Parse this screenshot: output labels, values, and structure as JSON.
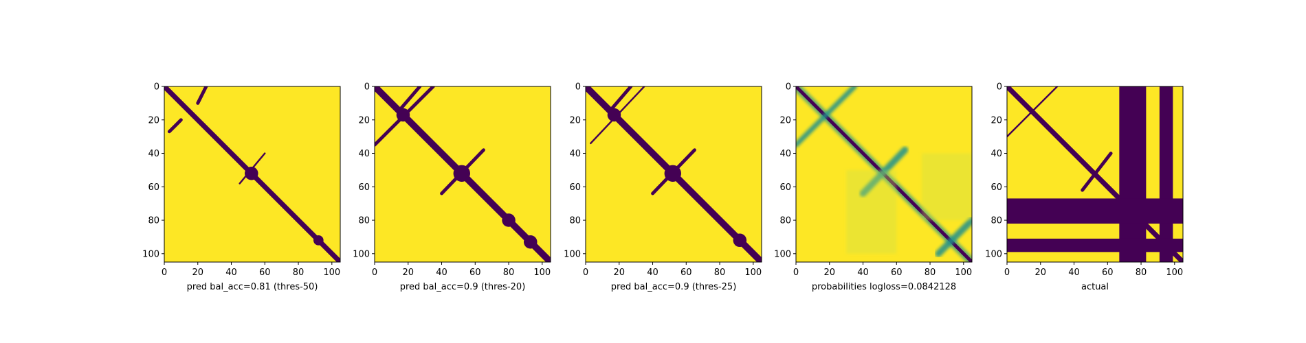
{
  "chart_data": [
    {
      "type": "heatmap",
      "panel": 1,
      "xlabel": "pred bal_acc=0.81 (thres-50)",
      "x_ticks": [
        0,
        20,
        40,
        60,
        80,
        100
      ],
      "y_ticks": [
        0,
        20,
        40,
        60,
        80,
        100
      ],
      "xlim": [
        0,
        105
      ],
      "ylim": [
        105,
        0
      ],
      "colors": {
        "low": "#440154",
        "high": "#fde725"
      },
      "values_binary": true,
      "features": [
        {
          "kind": "diagonal",
          "offset": 0,
          "width": 3
        },
        {
          "kind": "band_segment",
          "x0": 25,
          "y0": 0,
          "x1": 20,
          "y1": 10,
          "width": 2
        },
        {
          "kind": "band_segment",
          "x0": 10,
          "y0": 20,
          "x1": 3,
          "y1": 27,
          "width": 2
        },
        {
          "kind": "blob",
          "cx": 52,
          "cy": 52,
          "r": 4
        },
        {
          "kind": "band_segment",
          "x0": 60,
          "y0": 40,
          "x1": 45,
          "y1": 58,
          "width": 1
        },
        {
          "kind": "blob",
          "cx": 92,
          "cy": 92,
          "r": 3
        }
      ]
    },
    {
      "type": "heatmap",
      "panel": 2,
      "xlabel": "pred bal_acc=0.9 (thres-20)",
      "x_ticks": [
        0,
        20,
        40,
        60,
        80,
        100
      ],
      "y_ticks": [
        0,
        20,
        40,
        60,
        80,
        100
      ],
      "xlim": [
        0,
        105
      ],
      "ylim": [
        105,
        0
      ],
      "colors": {
        "low": "#440154",
        "high": "#fde725"
      },
      "values_binary": true,
      "features": [
        {
          "kind": "diagonal",
          "offset": 0,
          "width": 4
        },
        {
          "kind": "band_segment",
          "x0": 35,
          "y0": 0,
          "x1": 0,
          "y1": 35,
          "width": 2
        },
        {
          "kind": "band_segment",
          "x0": 27,
          "y0": 0,
          "x1": 15,
          "y1": 14,
          "width": 2
        },
        {
          "kind": "blob",
          "cx": 17,
          "cy": 17,
          "r": 4
        },
        {
          "kind": "blob",
          "cx": 52,
          "cy": 52,
          "r": 5
        },
        {
          "kind": "band_segment",
          "x0": 65,
          "y0": 38,
          "x1": 40,
          "y1": 64,
          "width": 2
        },
        {
          "kind": "blob",
          "cx": 80,
          "cy": 80,
          "r": 4
        },
        {
          "kind": "blob",
          "cx": 93,
          "cy": 93,
          "r": 4
        }
      ]
    },
    {
      "type": "heatmap",
      "panel": 3,
      "xlabel": "pred bal_acc=0.9 (thres-25)",
      "x_ticks": [
        0,
        20,
        40,
        60,
        80,
        100
      ],
      "y_ticks": [
        0,
        20,
        40,
        60,
        80,
        100
      ],
      "xlim": [
        0,
        105
      ],
      "ylim": [
        105,
        0
      ],
      "colors": {
        "low": "#440154",
        "high": "#fde725"
      },
      "values_binary": true,
      "features": [
        {
          "kind": "diagonal",
          "offset": 0,
          "width": 4
        },
        {
          "kind": "band_segment",
          "x0": 35,
          "y0": 0,
          "x1": 3,
          "y1": 34,
          "width": 1
        },
        {
          "kind": "band_segment",
          "x0": 27,
          "y0": 0,
          "x1": 15,
          "y1": 14,
          "width": 2
        },
        {
          "kind": "blob",
          "cx": 17,
          "cy": 17,
          "r": 4
        },
        {
          "kind": "blob",
          "cx": 52,
          "cy": 52,
          "r": 5
        },
        {
          "kind": "band_segment",
          "x0": 65,
          "y0": 38,
          "x1": 40,
          "y1": 64,
          "width": 2
        },
        {
          "kind": "blob",
          "cx": 92,
          "cy": 92,
          "r": 4
        }
      ]
    },
    {
      "type": "heatmap",
      "panel": 4,
      "xlabel": "probabilities logloss=0.0842128",
      "x_ticks": [
        0,
        20,
        40,
        60,
        80,
        100
      ],
      "y_ticks": [
        0,
        20,
        40,
        60,
        80,
        100
      ],
      "xlim": [
        0,
        105
      ],
      "ylim": [
        105,
        0
      ],
      "colormap": "viridis",
      "colors": {
        "low": "#440154",
        "mid": "#21918c",
        "high": "#fde725"
      },
      "values_binary": false,
      "features": [
        {
          "kind": "diagonal",
          "offset": 0,
          "width": 2
        },
        {
          "kind": "soft_band",
          "x0": 35,
          "y0": 0,
          "x1": 0,
          "y1": 35,
          "width": 3
        },
        {
          "kind": "soft_band",
          "x0": 65,
          "y0": 38,
          "x1": 40,
          "y1": 64,
          "width": 4
        },
        {
          "kind": "soft_band",
          "x0": 105,
          "y0": 80,
          "x1": 85,
          "y1": 100,
          "width": 4
        },
        {
          "kind": "faint_region",
          "x0": 30,
          "y0": 50,
          "x1": 60,
          "y1": 100
        },
        {
          "kind": "faint_region",
          "x0": 75,
          "y0": 40,
          "x1": 105,
          "y1": 80
        }
      ]
    },
    {
      "type": "heatmap",
      "panel": 5,
      "xlabel": "actual",
      "x_ticks": [
        0,
        20,
        40,
        60,
        80,
        100
      ],
      "y_ticks": [
        0,
        20,
        40,
        60,
        80,
        100
      ],
      "xlim": [
        0,
        105
      ],
      "ylim": [
        105,
        0
      ],
      "colors": {
        "low": "#440154",
        "high": "#fde725"
      },
      "values_binary": true,
      "features": [
        {
          "kind": "diagonal",
          "offset": 0,
          "width": 3
        },
        {
          "kind": "band_segment",
          "x0": 30,
          "y0": 0,
          "x1": 0,
          "y1": 30,
          "width": 1
        },
        {
          "kind": "band_segment",
          "x0": 62,
          "y0": 40,
          "x1": 45,
          "y1": 62,
          "width": 2
        },
        {
          "kind": "vstripe",
          "x0": 67,
          "x1": 83
        },
        {
          "kind": "vstripe",
          "x0": 91,
          "x1": 99
        },
        {
          "kind": "hstripe",
          "y0": 67,
          "y1": 82
        },
        {
          "kind": "hstripe",
          "y0": 91,
          "y1": 99
        }
      ]
    }
  ]
}
